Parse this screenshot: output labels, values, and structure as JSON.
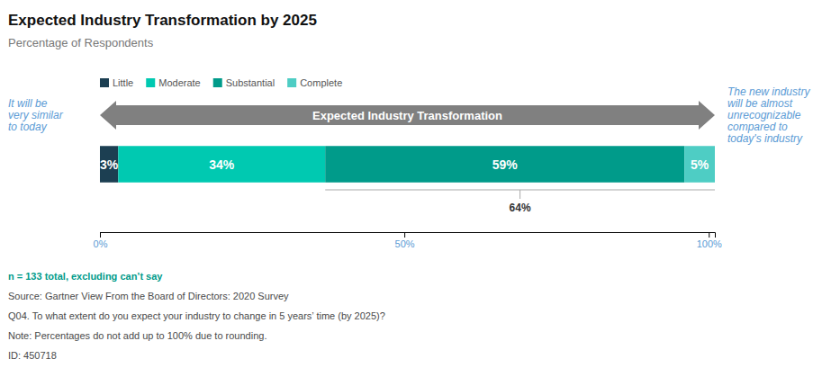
{
  "chart_data": {
    "type": "bar",
    "orientation": "horizontal",
    "stacked": true,
    "title": "Expected Industry Transformation by 2025",
    "subtitle": "Percentage of Respondents",
    "categories": [
      null
    ],
    "series": [
      {
        "name": "Little",
        "color": "#1c3f52",
        "values": [
          3
        ],
        "value_labels": [
          "3%"
        ]
      },
      {
        "name": "Moderate",
        "color": "#00c9b1",
        "values": [
          34
        ],
        "value_labels": [
          "34%"
        ]
      },
      {
        "name": "Substantial",
        "color": "#009b8a",
        "values": [
          59
        ],
        "value_labels": [
          "59%"
        ]
      },
      {
        "name": "Complete",
        "color": "#4ecdc4",
        "values": [
          5
        ],
        "value_labels": [
          "5%"
        ]
      }
    ],
    "xlim": [
      0,
      101
    ],
    "xticks": [
      {
        "value": 0,
        "label": "0%"
      },
      {
        "value": 50,
        "label": "50%"
      },
      {
        "value": 100,
        "label": "100%"
      }
    ],
    "tick_labels": "x",
    "grid": false,
    "legend": "top",
    "data_labels": true,
    "annotations": [
      "It will be\nvery similar\nto today",
      "Expected Industry Transformation",
      "The new industry\nwill be almost\nunrecognizable\ncompared to\ntoday's industry",
      "64%",
      "n = 133 total, excluding can’t say",
      "Source: Gartner View From the Board of Directors: 2020 Survey",
      "Q04. To what extent do you expect your industry to change in 5 years’ time (by 2025)?",
      "Note: Percentages do not add up to 100% due to rounding.",
      "ID: 450718"
    ]
  }
}
